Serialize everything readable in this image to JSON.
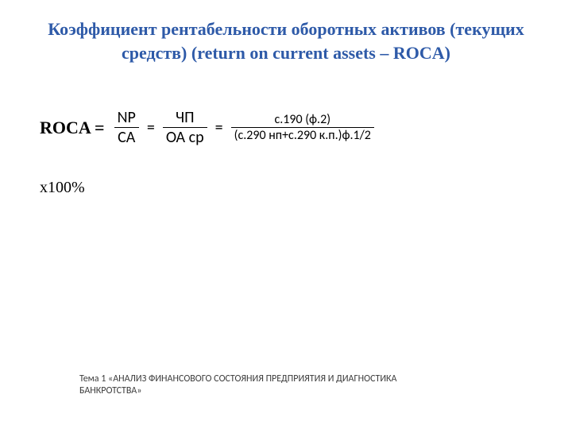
{
  "title": {
    "text": "Коэффициент рентабельности оборотных активов (текущих средств) (return on current assets – ROCA)",
    "color": "#2e5aa8",
    "fontsize": 22
  },
  "formula": {
    "label": "ROCA =",
    "label_color": "#000000",
    "eq_symbol": "=",
    "frac1": {
      "num": "NP",
      "den": "CA",
      "den_overline": true,
      "fontsize": 20,
      "color": "#000000",
      "bar_color": "#000000",
      "bar_width": 1
    },
    "frac2": {
      "num": "ЧП",
      "den": "ОА ср",
      "den_overline": true,
      "fontsize": 20,
      "color": "#000000",
      "bar_color": "#000000",
      "bar_width": 1
    },
    "frac3": {
      "num": "с.190 (ф.2)",
      "den": "(с.290 нп+с.290 к.п.)ф.1/2",
      "den_overline": true,
      "fontsize": 16,
      "color": "#000000",
      "bar_color": "#000000",
      "bar_width": 1
    }
  },
  "times100": "х100%",
  "footer": {
    "text": "Тема 1 «АНАЛИЗ ФИНАНСОВОГО СОСТОЯНИЯ ПРЕДПРИЯТИЯ И ДИАГНОСТИКА БАНКРОТСТВА»",
    "color": "#3b3b3b",
    "fontsize": 12
  },
  "background_color": "#ffffff"
}
